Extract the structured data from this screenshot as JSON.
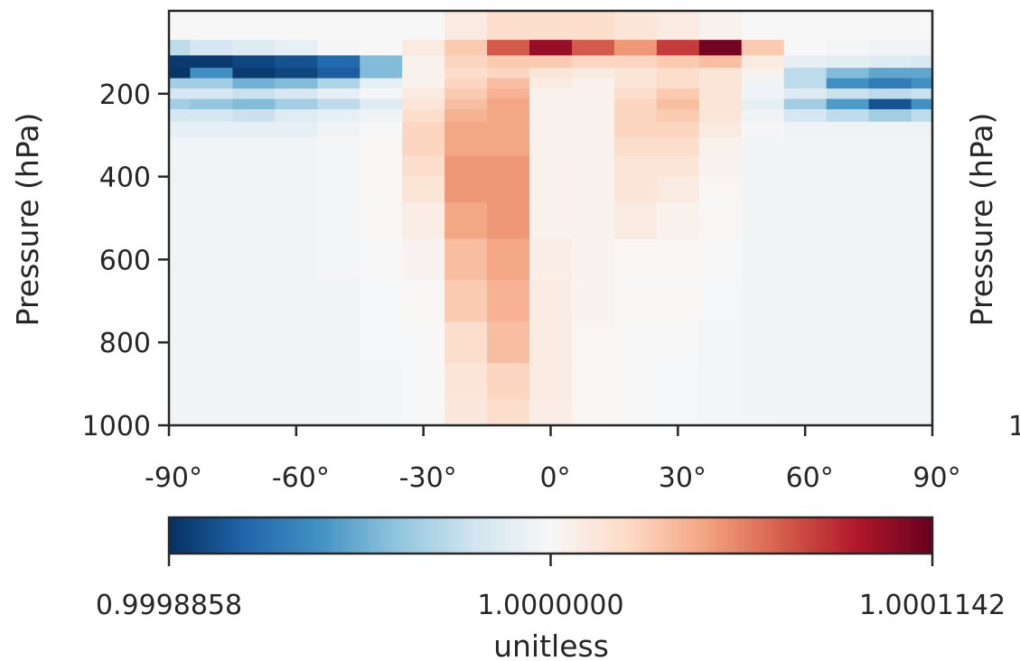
{
  "chart_data": {
    "type": "heatmap",
    "title": "",
    "xlabel": "",
    "ylabel": "Pressure (hPa)",
    "right_ylabel": "Pressure (hPa)",
    "right_tick_partial": "1",
    "x_ticks": [
      "-90°",
      "-60°",
      "-30°",
      "0°",
      "30°",
      "60°",
      "90°"
    ],
    "x_tick_values": [
      -90,
      -60,
      -30,
      0,
      30,
      60,
      90
    ],
    "y_ticks": [
      "200",
      "400",
      "600",
      "800",
      "1000"
    ],
    "y_tick_values": [
      200,
      400,
      600,
      800,
      1000
    ],
    "xlim": [
      -90,
      90
    ],
    "ylim": [
      1000,
      0
    ],
    "colormap": "RdBu_r",
    "colormap_stops": [
      "#053061",
      "#2166ac",
      "#4393c3",
      "#92c5de",
      "#d1e5f0",
      "#f7f7f7",
      "#fddbc7",
      "#f4a582",
      "#d6604d",
      "#b2182b",
      "#67001f"
    ],
    "colorbar": {
      "ticks": [
        "0.9998858",
        "1.0000000",
        "1.0001142"
      ],
      "tick_values": [
        0.9998858,
        1.0,
        1.0001142
      ],
      "min": 0.9998858,
      "max": 1.0001142,
      "label": "unitless"
    },
    "latitudes": [
      -90,
      -80,
      -70,
      -60,
      -50,
      -40,
      -30,
      -20,
      -10,
      0,
      10,
      20,
      30,
      40,
      50,
      60,
      70,
      80,
      90
    ],
    "pressure_levels": [
      50,
      90,
      125,
      150,
      175,
      200,
      225,
      250,
      285,
      325,
      375,
      425,
      500,
      600,
      700,
      800,
      900,
      975
    ],
    "values": [
      [
        1.0,
        1.0,
        1.0,
        1.0,
        1.0,
        1.0,
        1.0,
        1.00001,
        1.00002,
        1.00002,
        1.00002,
        1.000015,
        1.00001,
        1.000005,
        1.0,
        1.0,
        1.0,
        1.0,
        1.0
      ],
      [
        0.99997,
        0.99998,
        0.999985,
        0.99999,
        0.999998,
        1.0,
        1.00001,
        1.00003,
        1.00007,
        1.0001,
        1.00007,
        1.00005,
        1.00008,
        1.00011,
        1.00003,
        1.0,
        0.999998,
        0.999995,
        0.999995
      ],
      [
        0.99989,
        0.99989,
        0.999895,
        0.9999,
        0.99991,
        0.99995,
        1.000005,
        1.000025,
        1.00003,
        1.00003,
        1.000025,
        1.000025,
        1.00003,
        1.000035,
        1.00001,
        0.99999,
        0.999988,
        0.999985,
        0.999982
      ],
      [
        0.999888,
        0.99993,
        0.99989,
        0.999895,
        0.999905,
        0.99995,
        1.000005,
        1.00002,
        1.000025,
        1.000015,
        1.00001,
        1.000015,
        1.00002,
        1.000015,
        1.000005,
        0.99997,
        0.99995,
        0.99994,
        0.99994
      ],
      [
        0.99996,
        0.99996,
        0.999945,
        0.99995,
        0.999965,
        0.99999,
        1.000005,
        1.000025,
        1.000035,
        1.00001,
        1.000005,
        1.000015,
        1.00002,
        1.000015,
        0.999995,
        0.99997,
        0.99993,
        0.99992,
        0.99993
      ],
      [
        0.99998,
        0.99998,
        0.999975,
        0.99998,
        0.99999,
        0.999998,
        1.00001,
        1.00003,
        1.00004,
        1.000005,
        1.000005,
        1.00002,
        1.00003,
        1.000015,
        0.999995,
        0.999985,
        0.999975,
        0.99997,
        0.999975
      ],
      [
        0.99996,
        0.999955,
        0.99995,
        0.99996,
        0.99997,
        0.999985,
        1.000015,
        1.000035,
        1.000045,
        1.000005,
        1.000005,
        1.000025,
        1.000035,
        1.000015,
        0.99999,
        0.99996,
        0.999935,
        0.9999,
        0.99993
      ],
      [
        0.99998,
        0.99998,
        0.999975,
        0.999985,
        0.99999,
        0.999995,
        1.00002,
        1.00004,
        1.000045,
        1.000005,
        1.000005,
        1.000025,
        1.00003,
        1.000015,
        0.999995,
        0.99998,
        0.99997,
        0.99996,
        0.99997
      ],
      [
        0.99999,
        0.99999,
        0.99999,
        0.99999,
        0.999995,
        1.0,
        1.000025,
        1.000045,
        1.000045,
        1.000005,
        1.000005,
        1.000025,
        1.000025,
        1.00001,
        0.999998,
        0.999995,
        0.999995,
        0.999995,
        0.999995
      ],
      [
        0.999996,
        0.999996,
        0.999996,
        0.999996,
        0.999998,
        1.000002,
        1.000025,
        1.000045,
        1.000045,
        1.000005,
        1.000005,
        1.00002,
        1.00002,
        1.000005,
        0.999997,
        0.999996,
        0.999996,
        0.999996,
        0.999996
      ],
      [
        0.999996,
        0.999996,
        0.999996,
        0.999996,
        0.999998,
        1.000002,
        1.00002,
        1.00005,
        1.00005,
        1.000005,
        1.000004,
        1.000015,
        1.000015,
        1.000003,
        0.999997,
        0.999996,
        0.999996,
        0.999996,
        0.999996
      ],
      [
        0.999996,
        0.999996,
        0.999996,
        0.999996,
        0.999998,
        1.000002,
        1.000015,
        1.00005,
        1.00005,
        1.000005,
        1.000004,
        1.000015,
        1.00001,
        1.000002,
        0.999997,
        0.999996,
        0.999996,
        0.999996,
        0.999996
      ],
      [
        0.999996,
        0.999996,
        0.999996,
        0.999996,
        0.999998,
        1.000001,
        1.000008,
        1.000045,
        1.00005,
        1.000005,
        1.000004,
        1.00001,
        1.000005,
        1.000001,
        0.999997,
        0.999996,
        0.999996,
        0.999996,
        0.999996
      ],
      [
        0.999996,
        0.999996,
        0.999996,
        0.999996,
        0.999998,
        1.0,
        1.000003,
        1.000035,
        1.000045,
        1.000008,
        1.000003,
        1.000002,
        1.000002,
        1.0,
        0.999997,
        0.999996,
        0.999996,
        0.999996,
        0.999996
      ],
      [
        0.999996,
        0.999996,
        0.999996,
        0.999996,
        0.999997,
        0.999999,
        1.000001,
        1.00003,
        1.00004,
        1.00001,
        1.000003,
        1.000001,
        1.000001,
        0.999999,
        0.999997,
        0.999996,
        0.999996,
        0.999996,
        0.999996
      ],
      [
        0.999996,
        0.999996,
        0.999996,
        0.999996,
        0.999997,
        0.999999,
        1.0,
        1.00002,
        1.000035,
        1.00001,
        1.000002,
        1.0,
        1.0,
        0.999998,
        0.999997,
        0.999996,
        0.999996,
        0.999996,
        0.999996
      ],
      [
        0.999996,
        0.999996,
        0.999996,
        0.999996,
        0.999997,
        0.999998,
        1.0,
        1.000015,
        1.000025,
        1.00001,
        1.000002,
        1.0,
        0.999999,
        0.999998,
        0.999997,
        0.999996,
        0.999996,
        0.999996,
        0.999996
      ],
      [
        0.999996,
        0.999996,
        0.999996,
        0.999996,
        0.999997,
        0.999998,
        1.0,
        1.000012,
        1.00002,
        1.000008,
        1.000002,
        1.0,
        0.999999,
        0.999998,
        0.999997,
        0.999996,
        0.999996,
        0.999996,
        0.999996
      ]
    ]
  }
}
